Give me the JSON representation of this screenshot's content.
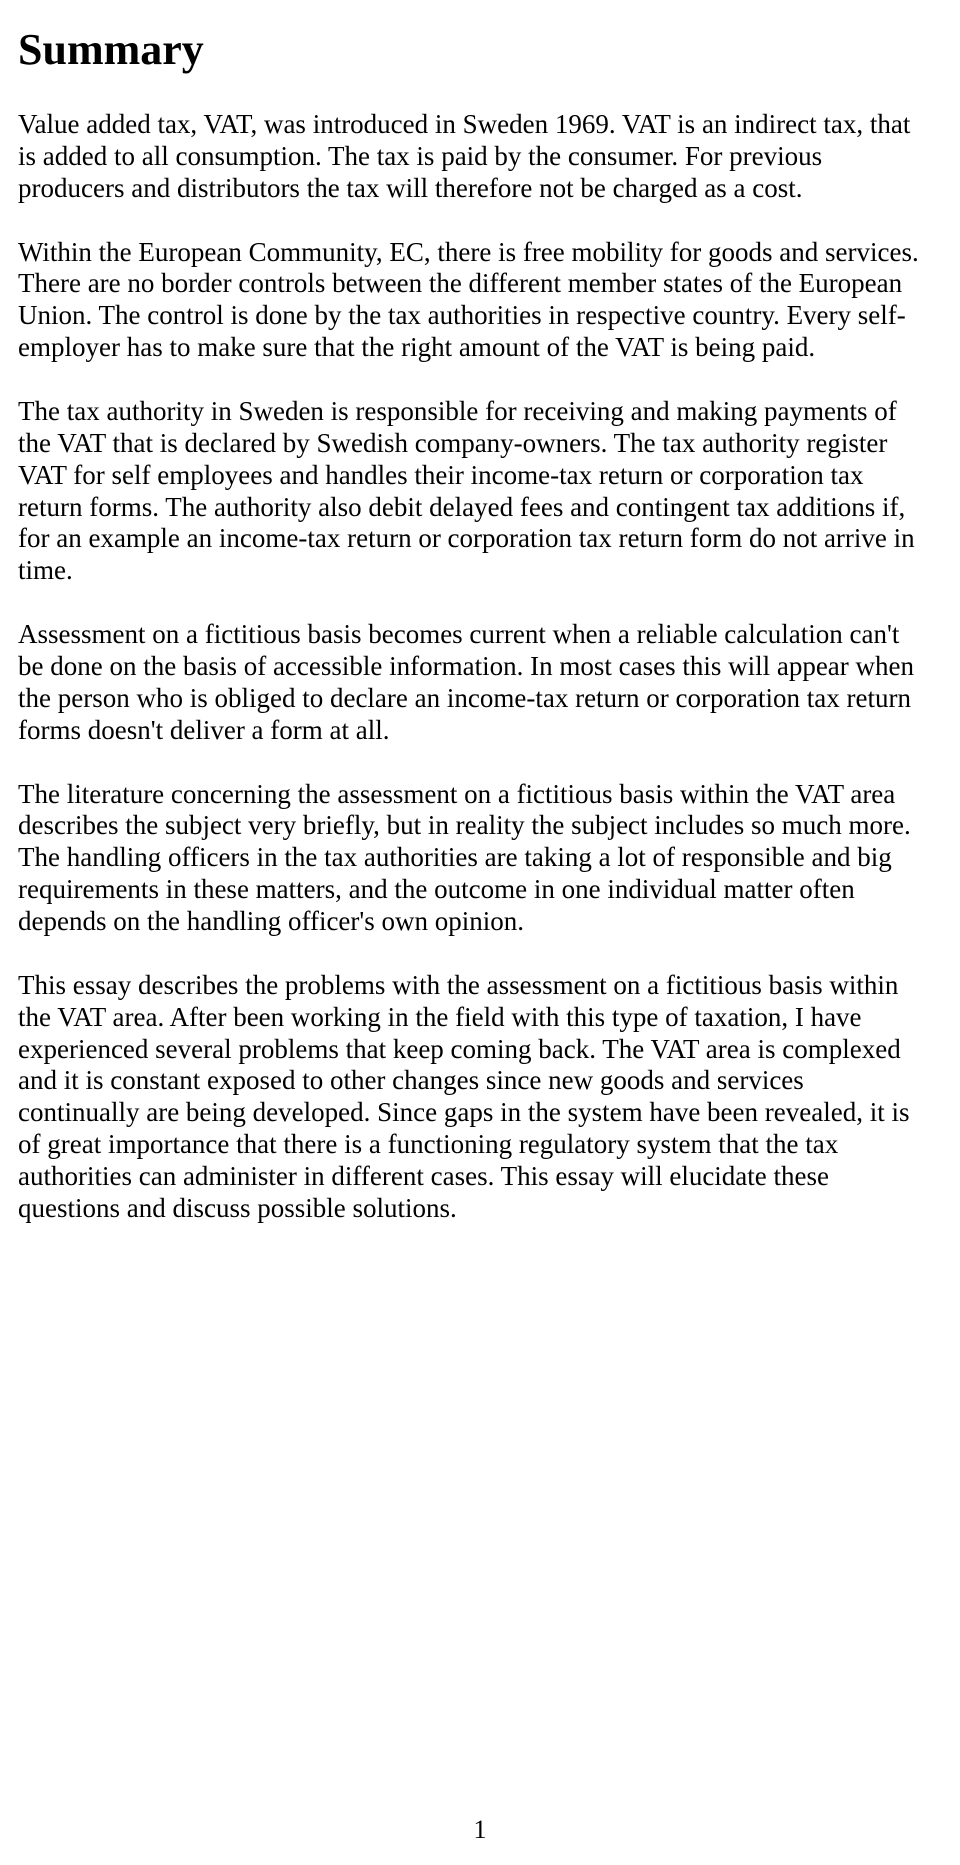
{
  "title": "Summary",
  "paragraphs": [
    "Value added tax, VAT, was introduced in Sweden 1969. VAT is an indirect tax, that is added to all consumption. The tax is paid by the consumer. For previous producers and distributors the tax will therefore not be charged as a cost.",
    "Within the European Community, EC, there is free mobility for goods and services. There are no border controls between the different member states of the European Union. The control is done by the tax authorities in respective country. Every self-employer has to make sure that the right amount of the VAT is being paid.",
    "The tax authority in Sweden is responsible for receiving and making payments of the VAT that is declared by Swedish company-owners. The tax authority register VAT for self employees and handles their income-tax return or corporation tax return forms. The authority also debit delayed fees and contingent tax additions if, for an example an income-tax return or corporation tax return form do not arrive in time.",
    "Assessment on a fictitious basis becomes current when a reliable calculation can't be done on the basis of accessible information. In most cases this will appear when the person who is obliged to declare an income-tax return or corporation tax return forms doesn't deliver a form at all.",
    "The literature concerning the assessment on a fictitious basis within the VAT area describes the subject very briefly, but in reality the subject includes so much more. The handling officers in the tax authorities are taking a lot of responsible and big requirements in these matters, and the outcome in one individual matter often depends on the handling officer's own opinion.",
    "This essay describes the problems with the assessment on a fictitious basis within the VAT area. After been working in the field with this type of taxation, I have experienced several problems that keep coming back. The VAT area is complexed and it is constant exposed to other changes since new goods and services continually are being developed. Since gaps in the system have been revealed, it is of great importance that there is a functioning regulatory system that the tax authorities can administer in different cases. This essay will elucidate these questions and discuss possible solutions."
  ],
  "page_number": "1",
  "colors": {
    "background": "#ffffff",
    "text": "#000000"
  },
  "typography": {
    "font_family": "Times New Roman",
    "title_fontsize": 44,
    "title_weight": "bold",
    "body_fontsize": 27,
    "line_height": 1.18
  }
}
